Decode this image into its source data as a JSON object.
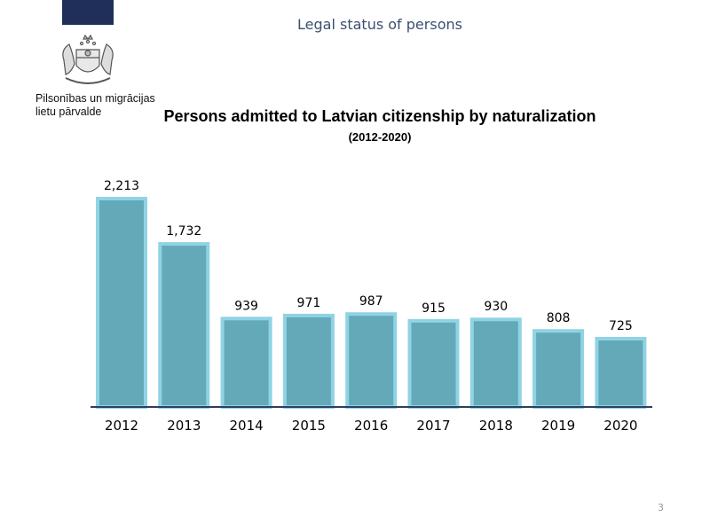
{
  "header": {
    "title": "Legal status of persons"
  },
  "organization": {
    "line1": "Pilsonības un migrācijas",
    "line2": "lietu pārvalde"
  },
  "colors": {
    "bar_fill": "#63a9b8",
    "bar_border": "#8fd3e4",
    "axis": "#2f3f5f",
    "navy": "#1f2f5a"
  },
  "chart_data": {
    "type": "bar",
    "title": "Persons admitted to Latvian citizenship by naturalization",
    "subtitle": "(2012-2020)",
    "categories": [
      "2012",
      "2013",
      "2014",
      "2015",
      "2016",
      "2017",
      "2018",
      "2019",
      "2020"
    ],
    "values": [
      2213,
      1732,
      939,
      971,
      987,
      915,
      930,
      808,
      725
    ],
    "value_labels": [
      "2,213",
      "1,732",
      "939",
      "971",
      "987",
      "915",
      "930",
      "808",
      "725"
    ],
    "xlabel": "",
    "ylabel": "",
    "ylim": [
      0,
      2213
    ],
    "grid": false
  },
  "footer": {
    "page_number": "3"
  }
}
